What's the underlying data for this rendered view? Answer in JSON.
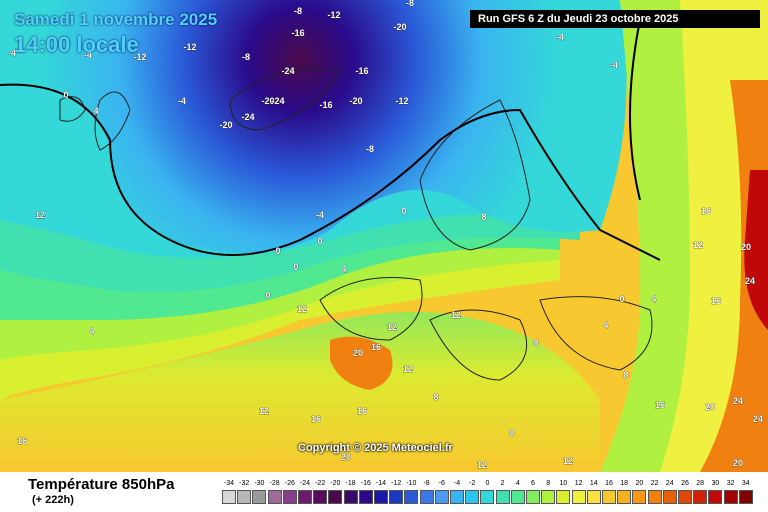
{
  "header": {
    "date": "Samedi 1 novembre 2025",
    "time": "14:00 locale",
    "run": "Run GFS 6 Z du Jeudi 23 octobre 2025"
  },
  "footer": {
    "title": "Température 850hPa",
    "subtitle": "(+ 222h)",
    "copyright": "Copyright © 2025 Meteociel.fr"
  },
  "legend": {
    "values": [
      "-34",
      "-32",
      "-30",
      "-28",
      "-26",
      "-24",
      "-22",
      "-20",
      "-18",
      "-16",
      "-14",
      "-12",
      "-10",
      "-8",
      "-6",
      "-4",
      "-2",
      "0",
      "2",
      "4",
      "6",
      "8",
      "10",
      "12",
      "14",
      "16",
      "18",
      "20",
      "22",
      "24",
      "26",
      "28",
      "30",
      "32",
      "34"
    ],
    "colors": [
      "#d8d8d8",
      "#b8b8b8",
      "#9a9a9a",
      "#a06a9a",
      "#8a3c8a",
      "#6e1a6e",
      "#5a0a5a",
      "#4a0a4a",
      "#3a0a6a",
      "#2a0a8a",
      "#1a1aa8",
      "#1a3ac0",
      "#2a5ad8",
      "#3a7ae8",
      "#4a9af0",
      "#3ab4f0",
      "#2ac8f0",
      "#34d8d8",
      "#40e0b0",
      "#50e890",
      "#80ee60",
      "#b0f040",
      "#d8f030",
      "#f0f040",
      "#f8e040",
      "#f8c830",
      "#f8b020",
      "#f89818",
      "#f08010",
      "#e86008",
      "#e04808",
      "#d02008",
      "#c00808",
      "#a00000",
      "#800000"
    ]
  },
  "labels": [
    {
      "text": "-4",
      "zone": "cold"
    },
    {
      "text": "-8",
      "zone": "cold"
    },
    {
      "text": "-12",
      "zone": "cold"
    },
    {
      "text": "-16",
      "zone": "cold"
    },
    {
      "text": "-20",
      "zone": "cold"
    },
    {
      "text": "-24",
      "zone": "cold"
    },
    {
      "text": "0",
      "zone": "mild"
    },
    {
      "text": "4",
      "zone": "mild"
    },
    {
      "text": "8",
      "zone": "warm"
    },
    {
      "text": "12",
      "zone": "warm"
    },
    {
      "text": "16",
      "zone": "warm"
    },
    {
      "text": "20",
      "zone": "hot"
    },
    {
      "text": "24",
      "zone": "hot"
    }
  ]
}
